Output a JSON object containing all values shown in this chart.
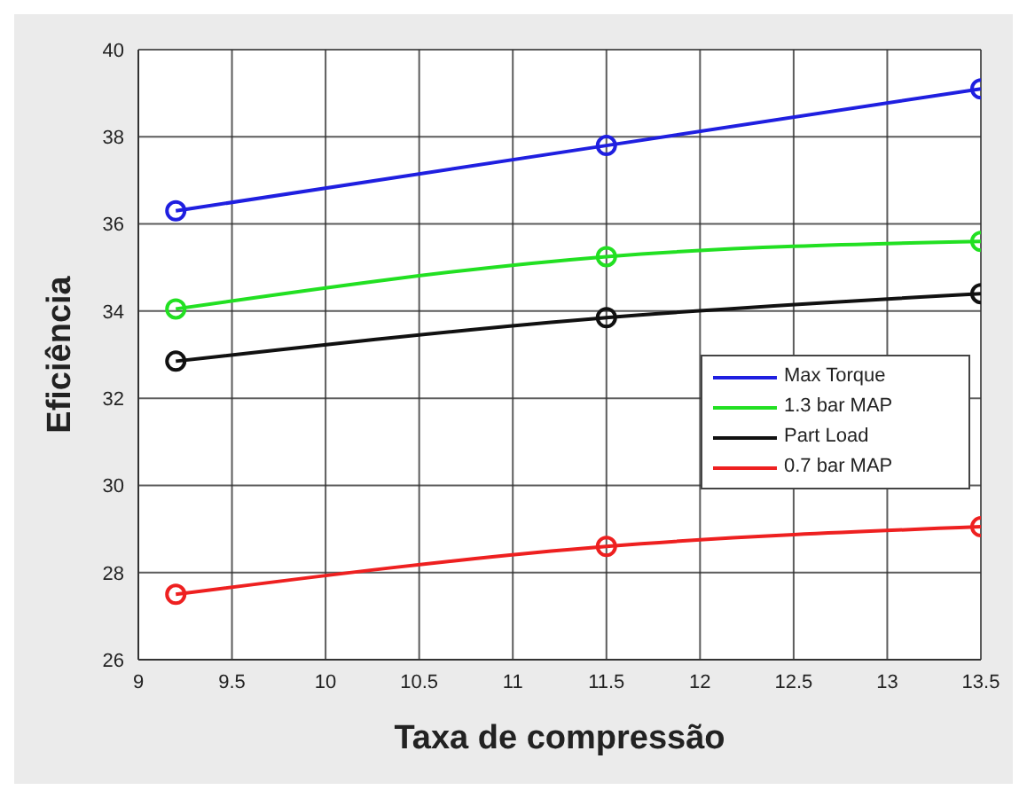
{
  "chart_data": {
    "type": "line",
    "xlabel": "Taxa de compressão",
    "ylabel": "Eficiência",
    "x": [
      9.2,
      11.5,
      13.5
    ],
    "series": [
      {
        "name": "Max Torque",
        "color": "#1f1fe0",
        "values": [
          36.3,
          37.8,
          39.1
        ]
      },
      {
        "name": "1.3 bar MAP",
        "color": "#22e022",
        "values": [
          34.05,
          35.25,
          35.6
        ]
      },
      {
        "name": "Part Load",
        "color": "#111111",
        "values": [
          32.85,
          33.85,
          34.4
        ]
      },
      {
        "name": "0.7 bar MAP",
        "color": "#ee2020",
        "values": [
          27.5,
          28.6,
          29.05
        ]
      }
    ],
    "xlim": [
      9,
      13.5
    ],
    "xticks": [
      9,
      9.5,
      10,
      10.5,
      11,
      11.5,
      12,
      12.5,
      13,
      13.5
    ],
    "ylim": [
      26,
      40
    ],
    "yticks": [
      26,
      28,
      30,
      32,
      34,
      36,
      38,
      40
    ],
    "grid": true,
    "legend": "right",
    "marker": "circle",
    "line_style": "solid"
  }
}
